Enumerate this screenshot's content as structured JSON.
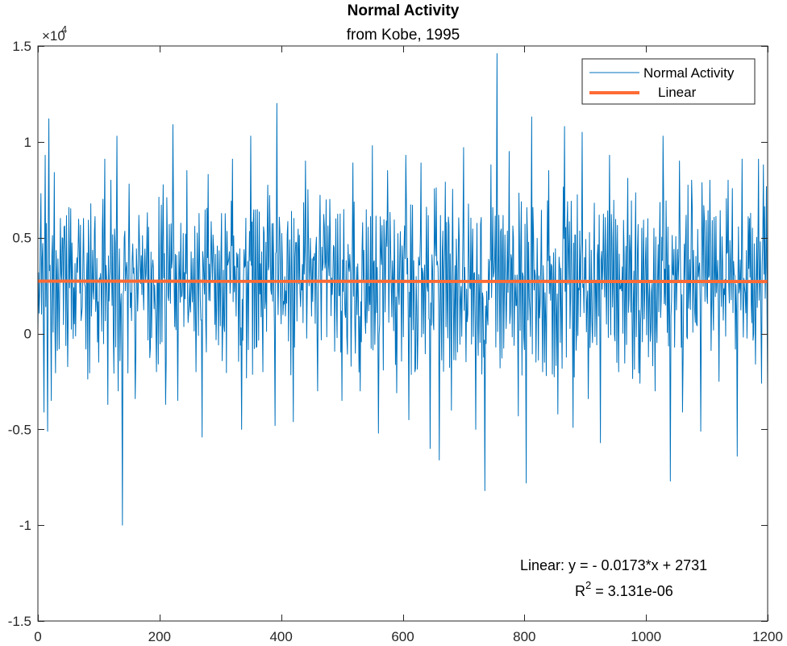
{
  "chart_data": {
    "type": "line",
    "title": "Normal Activity",
    "subtitle": "from Kobe, 1995",
    "xlabel": "",
    "ylabel": "",
    "xlim": [
      0,
      1200
    ],
    "ylim": [
      -15000,
      15000
    ],
    "x_ticks": [
      0,
      200,
      400,
      600,
      800,
      1000,
      1200
    ],
    "x_tick_labels": [
      "0",
      "200",
      "400",
      "600",
      "800",
      "1000",
      "1200"
    ],
    "y_ticks": [
      -15000,
      -10000,
      -5000,
      0,
      5000,
      10000,
      15000
    ],
    "y_tick_labels": [
      "-1.5",
      "-1",
      "-0.5",
      "0",
      "0.5",
      "1",
      "1.5"
    ],
    "y_exponent_base": "×10",
    "y_exponent_power": "4",
    "grid": false,
    "box": true,
    "legend_position": "top-right",
    "series": [
      {
        "name": "Normal Activity",
        "color": "#0072BD",
        "line_width": 1,
        "x_step": 1,
        "num_points": 1201,
        "keypoints": [
          [
            0,
            0
          ],
          [
            5,
            7300
          ],
          [
            10,
            -4100
          ],
          [
            12,
            9300
          ],
          [
            16,
            -5100
          ],
          [
            18,
            11200
          ],
          [
            22,
            -3500
          ],
          [
            27,
            8400
          ],
          [
            35,
            -800
          ],
          [
            40,
            5000
          ],
          [
            60,
            500
          ],
          [
            75,
            6000
          ],
          [
            100,
            -1500
          ],
          [
            110,
            9100
          ],
          [
            115,
            -3700
          ],
          [
            120,
            8000
          ],
          [
            130,
            10300
          ],
          [
            132,
            -3000
          ],
          [
            139,
            -10000
          ],
          [
            142,
            5000
          ],
          [
            150,
            7800
          ],
          [
            160,
            -3400
          ],
          [
            180,
            6300
          ],
          [
            195,
            -2000
          ],
          [
            210,
            -3700
          ],
          [
            222,
            10900
          ],
          [
            230,
            -3500
          ],
          [
            245,
            8500
          ],
          [
            260,
            -2000
          ],
          [
            270,
            -5400
          ],
          [
            280,
            8300
          ],
          [
            300,
            400
          ],
          [
            320,
            9100
          ],
          [
            335,
            -5000
          ],
          [
            350,
            10300
          ],
          [
            370,
            -2000
          ],
          [
            380,
            3500
          ],
          [
            390,
            -4800
          ],
          [
            393,
            12000
          ],
          [
            400,
            500
          ],
          [
            420,
            -4600
          ],
          [
            440,
            9000
          ],
          [
            460,
            -3000
          ],
          [
            480,
            7000
          ],
          [
            500,
            -3500
          ],
          [
            518,
            8900
          ],
          [
            530,
            -3000
          ],
          [
            550,
            9800
          ],
          [
            560,
            -5200
          ],
          [
            575,
            8500
          ],
          [
            590,
            -3100
          ],
          [
            605,
            9300
          ],
          [
            610,
            -4500
          ],
          [
            620,
            -2000
          ],
          [
            630,
            8900
          ],
          [
            645,
            -6000
          ],
          [
            655,
            7600
          ],
          [
            660,
            -6600
          ],
          [
            670,
            7900
          ],
          [
            680,
            -4000
          ],
          [
            700,
            9700
          ],
          [
            720,
            -5000
          ],
          [
            735,
            -8200
          ],
          [
            745,
            8800
          ],
          [
            755,
            14600
          ],
          [
            760,
            -1800
          ],
          [
            775,
            9500
          ],
          [
            790,
            -4300
          ],
          [
            803,
            -7800
          ],
          [
            812,
            11300
          ],
          [
            830,
            -2000
          ],
          [
            840,
            8500
          ],
          [
            855,
            -4200
          ],
          [
            866,
            10800
          ],
          [
            880,
            -4900
          ],
          [
            895,
            10500
          ],
          [
            905,
            -3400
          ],
          [
            915,
            6800
          ],
          [
            925,
            -5700
          ],
          [
            940,
            9300
          ],
          [
            955,
            -2000
          ],
          [
            970,
            8100
          ],
          [
            990,
            -2600
          ],
          [
            1000,
            5000
          ],
          [
            1015,
            -3000
          ],
          [
            1028,
            10300
          ],
          [
            1040,
            -7700
          ],
          [
            1055,
            9000
          ],
          [
            1060,
            -4100
          ],
          [
            1075,
            8000
          ],
          [
            1090,
            -5100
          ],
          [
            1105,
            8000
          ],
          [
            1120,
            -2500
          ],
          [
            1135,
            8000
          ],
          [
            1150,
            -6400
          ],
          [
            1158,
            9100
          ],
          [
            1170,
            6000
          ],
          [
            1180,
            -1600
          ],
          [
            1185,
            9100
          ],
          [
            1190,
            -2600
          ],
          [
            1193,
            8800
          ],
          [
            1197,
            3500
          ],
          [
            1200,
            -3000
          ]
        ],
        "y_min": -10000,
        "y_max": 14600,
        "mean": 2730
      },
      {
        "name": "Linear",
        "color": "#FF6B35",
        "line_width": 4,
        "x": [
          0,
          1200
        ],
        "y": [
          2731,
          2710.24
        ]
      }
    ],
    "legend": [
      "Normal Activity",
      "Linear"
    ],
    "annotations": {
      "equation": "Linear:  y = - 0.0173*x + 2731",
      "r2_prefix": "R",
      "r2_power": "2",
      "r2_value": " = 3.131e-06"
    }
  }
}
